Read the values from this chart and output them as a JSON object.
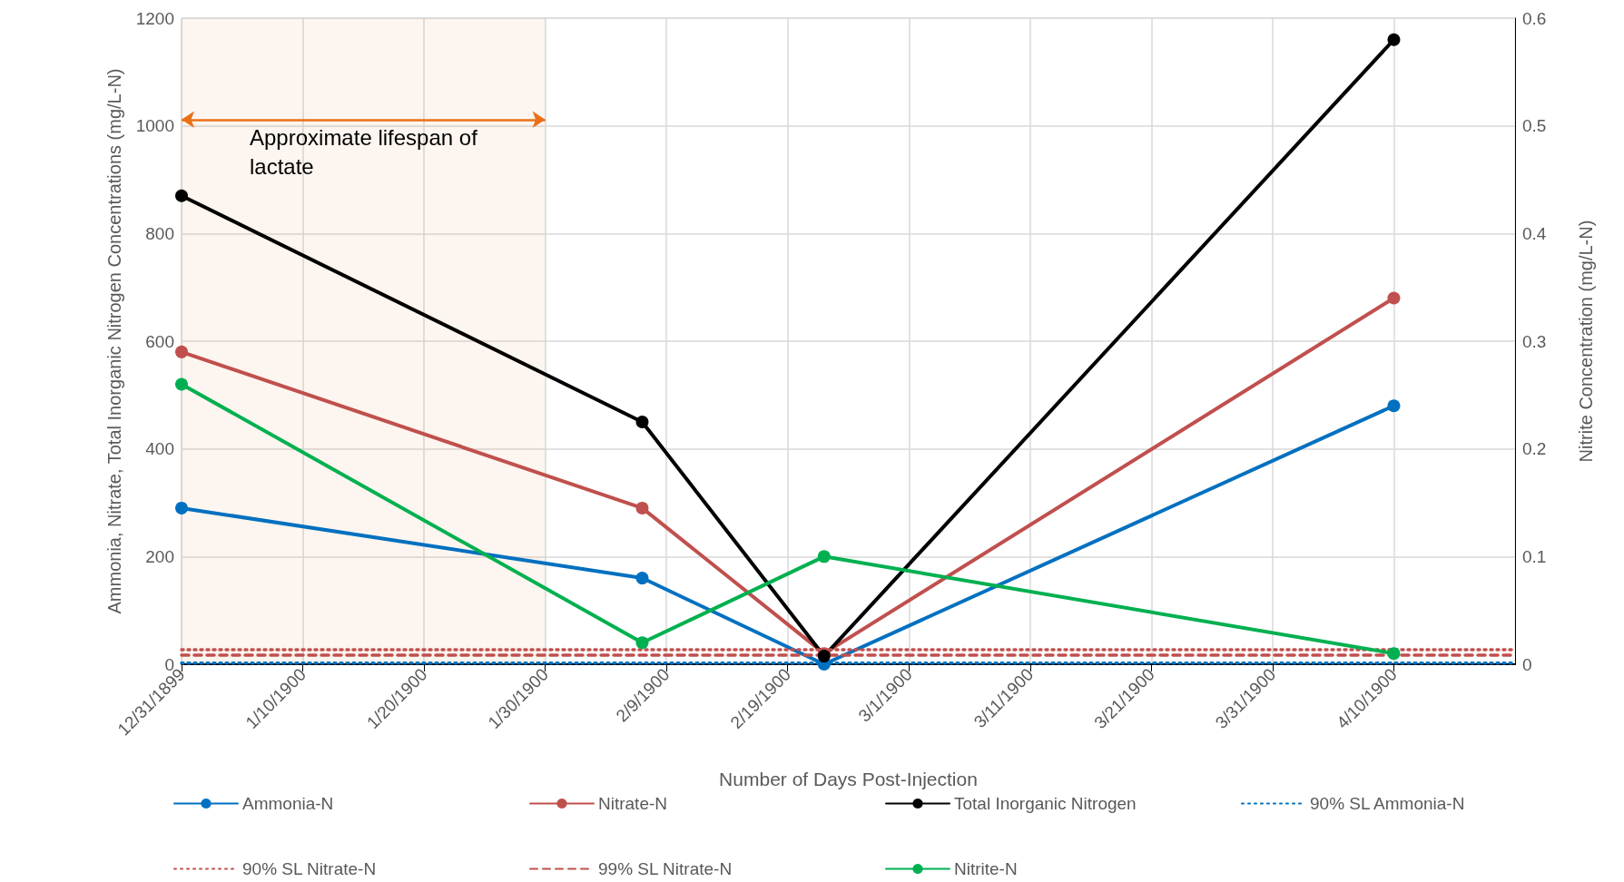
{
  "chart_data": {
    "type": "line",
    "xlabel": "Number of Days Post-Injection",
    "ylabel": "Ammonia, Nitrate, Total Inorganic Nitrogen Concentrations (mg/L-N)",
    "y2label": "Nitrite Concentration (mg/L-N)",
    "x": [
      "1899-12-31",
      "1900-02-07",
      "1900-02-22",
      "1900-04-10"
    ],
    "xlim": [
      "1899-12-31",
      "1900-04-20"
    ],
    "xticks": [
      {
        "value": "1899-12-31",
        "label": "12/31/1899"
      },
      {
        "value": "1900-01-10",
        "label": "1/10/1900"
      },
      {
        "value": "1900-01-20",
        "label": "1/20/1900"
      },
      {
        "value": "1900-01-30",
        "label": "1/30/1900"
      },
      {
        "value": "1900-02-09",
        "label": "2/9/1900"
      },
      {
        "value": "1900-02-19",
        "label": "2/19/1900"
      },
      {
        "value": "1900-03-01",
        "label": "3/1/1900"
      },
      {
        "value": "1900-03-11",
        "label": "3/11/1900"
      },
      {
        "value": "1900-03-21",
        "label": "3/21/1900"
      },
      {
        "value": "1900-03-31",
        "label": "3/31/1900"
      },
      {
        "value": "1900-04-10",
        "label": "4/10/1900"
      }
    ],
    "ylim": [
      0,
      1200
    ],
    "yticks": [
      0,
      200,
      400,
      600,
      800,
      1000,
      1200
    ],
    "y2lim": [
      0,
      0.6
    ],
    "y2ticks": [
      0,
      0.1,
      0.2,
      0.3,
      0.4,
      0.5,
      0.6
    ],
    "grid": true,
    "legend": "bottom",
    "series": [
      {
        "name": "Ammonia-N",
        "color": "#0070c0",
        "values": [
          290,
          160,
          0,
          480
        ],
        "marker": "circle",
        "line_style": "solid"
      },
      {
        "name": "Nitrate-N",
        "color": "#c0504d",
        "values": [
          580,
          290,
          20,
          680
        ],
        "marker": "circle",
        "line_style": "solid"
      },
      {
        "name": "Total Inorganic Nitrogen",
        "color": "#000000",
        "values": [
          870,
          450,
          15,
          1160
        ],
        "marker": "circle",
        "line_style": "solid"
      },
      {
        "name": "90% SL Ammonia-N",
        "color": "#0070c0",
        "x": [
          "1899-12-31",
          "1900-04-20"
        ],
        "values": [
          2,
          2
        ],
        "marker": "none",
        "line_style": "dotted"
      },
      {
        "name": "90% SL Nitrate-N",
        "color": "#c0504d",
        "x": [
          "1899-12-31",
          "1900-04-20"
        ],
        "values": [
          27,
          27
        ],
        "marker": "none",
        "line_style": "dotted"
      },
      {
        "name": "99% SL Nitrate-N",
        "color": "#c0504d",
        "x": [
          "1899-12-31",
          "1900-04-20"
        ],
        "values": [
          17,
          17
        ],
        "marker": "none",
        "line_style": "dashed"
      },
      {
        "name": "Nitrite-N",
        "color": "#00b050",
        "values": [
          0.26,
          0.02,
          0.1,
          0.01
        ],
        "marker": "circle",
        "line_style": "solid",
        "axis": "y2"
      }
    ],
    "bands": [
      {
        "axis": "x",
        "from": "1899-12-31",
        "to": "1900-01-30",
        "label": "Approximate lifespan of lactate",
        "color": "#e97016"
      }
    ]
  }
}
